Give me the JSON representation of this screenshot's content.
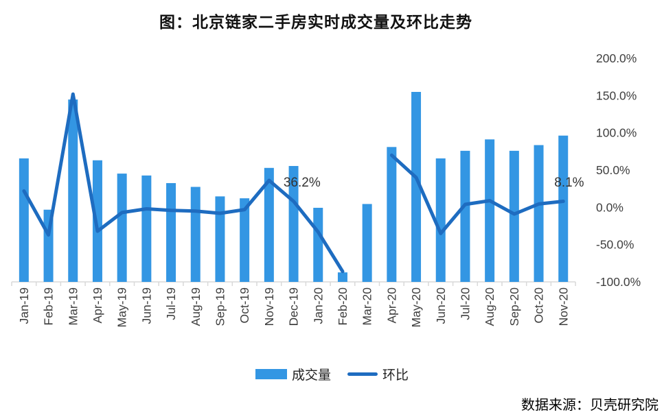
{
  "title": "图：北京链家二手房实时成交量及环比走势",
  "source_note": "数据来源：贝壳研究院",
  "legend": {
    "volume_label": "成交量",
    "mom_label": "环比"
  },
  "colors": {
    "bar": "#3396E3",
    "line": "#1E6CC0",
    "axis_text": "#3f3f3f",
    "axis_line": "#D9D9D9",
    "annotation_text": "#333333"
  },
  "chart_data": {
    "type": "combo (bar + line)",
    "title": "图：北京链家二手房实时成交量及环比走势",
    "categories": [
      "Jan-19",
      "Feb-19",
      "Mar-19",
      "Apr-19",
      "May-19",
      "Jun-19",
      "Jul-19",
      "Aug-19",
      "Sep-19",
      "Oct-19",
      "Nov-19",
      "Dec-19",
      "Jan-20",
      "Feb-20",
      "Mar-20",
      "Apr-20",
      "May-20",
      "Jun-20",
      "Jul-20",
      "Aug-20",
      "Sep-20",
      "Oct-20",
      "Nov-20"
    ],
    "series": [
      {
        "name": "成交量",
        "type": "bar",
        "unit": "relative transaction volume (value axis hidden; tallest bar May-20 = 100)",
        "values": [
          65,
          38,
          96,
          64,
          57,
          56,
          52,
          50,
          45,
          44,
          60,
          61,
          39,
          5,
          41,
          71,
          100,
          65,
          69,
          75,
          69,
          72,
          77
        ]
      },
      {
        "name": "环比",
        "type": "line",
        "unit": "percent (right axis)",
        "values": [
          22,
          -37,
          152,
          -32,
          -7,
          -2,
          -4,
          -5,
          -8,
          -3,
          36.2,
          8,
          -33,
          -86,
          null,
          70,
          40,
          -35,
          4,
          9,
          -9,
          4.5,
          8.1
        ]
      }
    ],
    "right_axis": {
      "tick_labels": [
        "200.0%",
        "150.0%",
        "100.0%",
        "50.0%",
        "0.0%",
        "-50.0%",
        "-100.0%"
      ],
      "tick_values": [
        200,
        150,
        100,
        50,
        0,
        -50,
        -100
      ],
      "min": -100,
      "max": 200
    },
    "annotations": [
      {
        "category": "Nov-19",
        "text": "36.2%",
        "dx": 21
      },
      {
        "category": "Nov-20",
        "text": "8.1%",
        "dx": -13
      }
    ],
    "legend_position": "bottom",
    "grid": "off",
    "notes": "line series has a gap at Mar-20; x labels rotated 90° CCW"
  }
}
